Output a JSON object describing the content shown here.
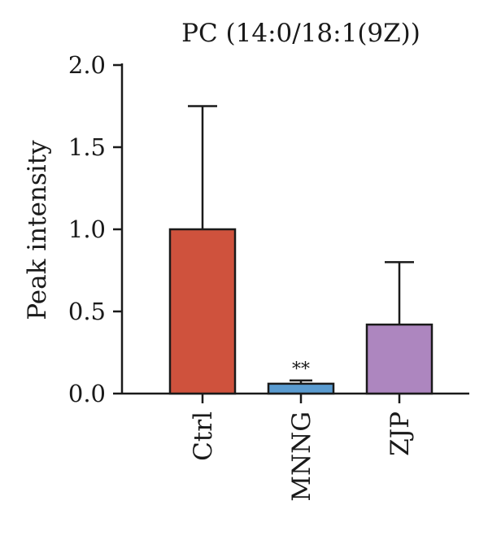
{
  "chart_data": {
    "type": "bar",
    "title": "PC (14:0/18:1(9Z))",
    "xlabel": "",
    "ylabel": "Peak intensity",
    "ylim": [
      0,
      2.0
    ],
    "yticks": [
      0.0,
      0.5,
      1.0,
      1.5,
      2.0
    ],
    "ytick_labels": [
      "0.0",
      "0.5",
      "1.0",
      "1.5",
      "2.0"
    ],
    "categories": [
      "Ctrl",
      "MNNG",
      "ZJP"
    ],
    "values": [
      1.0,
      0.06,
      0.42
    ],
    "errors": [
      0.75,
      0.02,
      0.38
    ],
    "annotations": [
      "",
      "**",
      ""
    ],
    "colors": [
      "#cf523d",
      "#5a9bd0",
      "#ad86bf"
    ],
    "grid": false,
    "legend": "none"
  }
}
